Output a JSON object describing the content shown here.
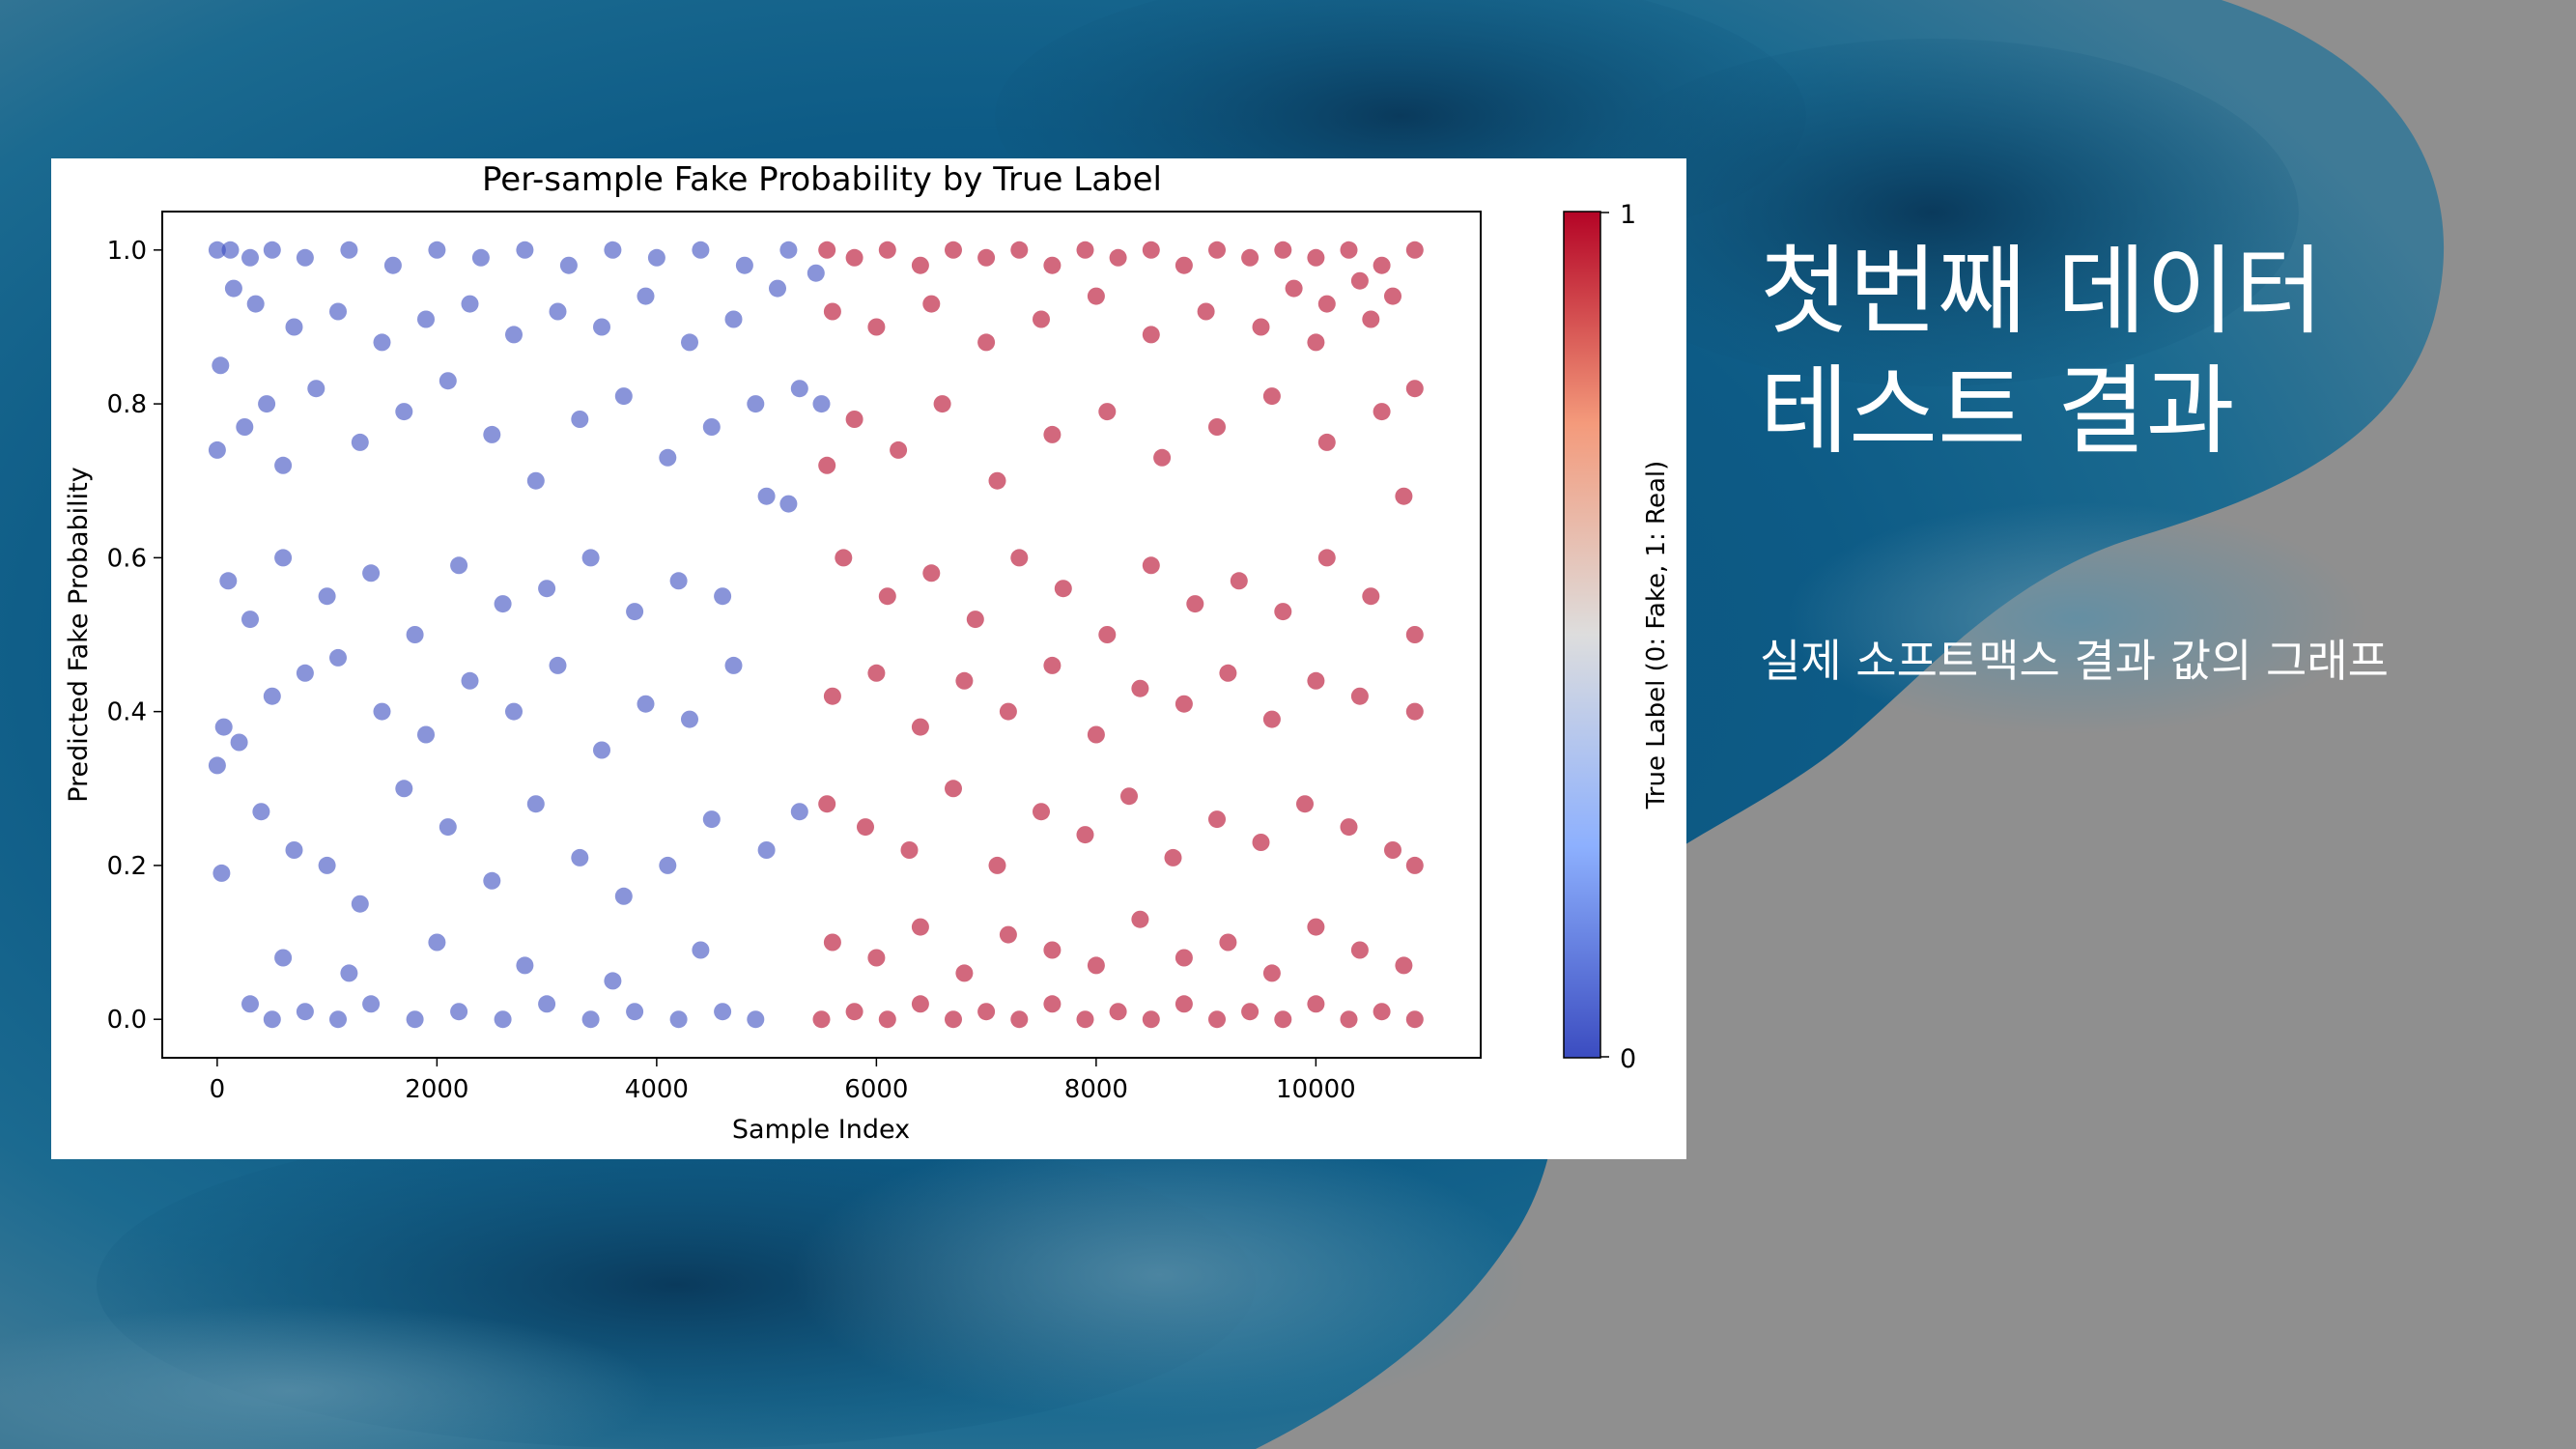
{
  "slide": {
    "title_line1": "첫번째 데이터",
    "title_line2": "테스트 결과",
    "subtitle": "실제 소프트맥스 결과 값의 그래프"
  },
  "colors": {
    "fake": "#3b4cc0",
    "real": "#b40426",
    "background_dark": "#0d4a6e",
    "background_gray": "#8f8f8f",
    "text": "#ffffff"
  },
  "chart_data": {
    "type": "scatter",
    "title": "Per-sample Fake Probability by True Label",
    "xlabel": "Sample Index",
    "ylabel": "Predicted Fake Probability",
    "xlim": [
      -500,
      11500
    ],
    "ylim": [
      -0.05,
      1.05
    ],
    "xticks": [
      0,
      2000,
      4000,
      6000,
      8000,
      10000
    ],
    "yticks": [
      0.0,
      0.2,
      0.4,
      0.6,
      0.8,
      1.0
    ],
    "xtick_labels": [
      "0",
      "2000",
      "4000",
      "6000",
      "8000",
      "10000"
    ],
    "ytick_labels": [
      "0.0",
      "0.2",
      "0.4",
      "0.6",
      "0.8",
      "1.0"
    ],
    "grid": false,
    "colorbar": {
      "label": "True Label (0: Fake, 1: Real)",
      "min_label": "0",
      "max_label": "1",
      "colormap": "coolwarm"
    },
    "series": [
      {
        "label_value": 0,
        "x_range": [
          0,
          5500
        ],
        "points": [
          [
            0,
            1.0
          ],
          [
            120,
            1.0
          ],
          [
            300,
            0.99
          ],
          [
            500,
            1.0
          ],
          [
            800,
            0.99
          ],
          [
            1200,
            1.0
          ],
          [
            1600,
            0.98
          ],
          [
            2000,
            1.0
          ],
          [
            2400,
            0.99
          ],
          [
            2800,
            1.0
          ],
          [
            3200,
            0.98
          ],
          [
            3600,
            1.0
          ],
          [
            4000,
            0.99
          ],
          [
            4400,
            1.0
          ],
          [
            4800,
            0.98
          ],
          [
            5200,
            1.0
          ],
          [
            5450,
            0.97
          ],
          [
            150,
            0.95
          ],
          [
            350,
            0.93
          ],
          [
            700,
            0.9
          ],
          [
            1100,
            0.92
          ],
          [
            1500,
            0.88
          ],
          [
            1900,
            0.91
          ],
          [
            2300,
            0.93
          ],
          [
            2700,
            0.89
          ],
          [
            3100,
            0.92
          ],
          [
            3500,
            0.9
          ],
          [
            3900,
            0.94
          ],
          [
            4300,
            0.88
          ],
          [
            4700,
            0.91
          ],
          [
            5100,
            0.95
          ],
          [
            0,
            0.74
          ],
          [
            30,
            0.85
          ],
          [
            250,
            0.77
          ],
          [
            450,
            0.8
          ],
          [
            600,
            0.72
          ],
          [
            900,
            0.82
          ],
          [
            1300,
            0.75
          ],
          [
            1700,
            0.79
          ],
          [
            2100,
            0.83
          ],
          [
            2500,
            0.76
          ],
          [
            2900,
            0.7
          ],
          [
            3300,
            0.78
          ],
          [
            3700,
            0.81
          ],
          [
            4100,
            0.73
          ],
          [
            4500,
            0.77
          ],
          [
            4900,
            0.8
          ],
          [
            5300,
            0.82
          ],
          [
            5500,
            0.8
          ],
          [
            100,
            0.57
          ],
          [
            300,
            0.52
          ],
          [
            600,
            0.6
          ],
          [
            1000,
            0.55
          ],
          [
            1400,
            0.58
          ],
          [
            1800,
            0.5
          ],
          [
            2200,
            0.59
          ],
          [
            2600,
            0.54
          ],
          [
            3000,
            0.56
          ],
          [
            3400,
            0.6
          ],
          [
            3800,
            0.53
          ],
          [
            4200,
            0.57
          ],
          [
            4600,
            0.55
          ],
          [
            5000,
            0.68
          ],
          [
            5200,
            0.67
          ],
          [
            60,
            0.38
          ],
          [
            200,
            0.36
          ],
          [
            500,
            0.42
          ],
          [
            800,
            0.45
          ],
          [
            1100,
            0.47
          ],
          [
            1500,
            0.4
          ],
          [
            1900,
            0.37
          ],
          [
            2300,
            0.44
          ],
          [
            2700,
            0.4
          ],
          [
            3100,
            0.46
          ],
          [
            3500,
            0.35
          ],
          [
            3900,
            0.41
          ],
          [
            4300,
            0.39
          ],
          [
            4700,
            0.46
          ],
          [
            5300,
            0.27
          ],
          [
            0,
            0.33
          ],
          [
            40,
            0.19
          ],
          [
            400,
            0.27
          ],
          [
            700,
            0.22
          ],
          [
            1000,
            0.2
          ],
          [
            1300,
            0.15
          ],
          [
            1700,
            0.3
          ],
          [
            2100,
            0.25
          ],
          [
            2500,
            0.18
          ],
          [
            2900,
            0.28
          ],
          [
            3300,
            0.21
          ],
          [
            3700,
            0.16
          ],
          [
            4100,
            0.2
          ],
          [
            4500,
            0.26
          ],
          [
            5000,
            0.22
          ],
          [
            300,
            0.02
          ],
          [
            500,
            0.0
          ],
          [
            800,
            0.01
          ],
          [
            1100,
            0.0
          ],
          [
            1400,
            0.02
          ],
          [
            1800,
            0.0
          ],
          [
            2200,
            0.01
          ],
          [
            2600,
            0.0
          ],
          [
            3000,
            0.02
          ],
          [
            3400,
            0.0
          ],
          [
            3800,
            0.01
          ],
          [
            4200,
            0.0
          ],
          [
            4600,
            0.01
          ],
          [
            4900,
            0.0
          ],
          [
            600,
            0.08
          ],
          [
            1200,
            0.06
          ],
          [
            2000,
            0.1
          ],
          [
            2800,
            0.07
          ],
          [
            3600,
            0.05
          ],
          [
            4400,
            0.09
          ]
        ]
      },
      {
        "label_value": 1,
        "x_range": [
          5500,
          11000
        ],
        "points": [
          [
            5550,
            1.0
          ],
          [
            5800,
            0.99
          ],
          [
            6100,
            1.0
          ],
          [
            6400,
            0.98
          ],
          [
            6700,
            1.0
          ],
          [
            7000,
            0.99
          ],
          [
            7300,
            1.0
          ],
          [
            7600,
            0.98
          ],
          [
            7900,
            1.0
          ],
          [
            8200,
            0.99
          ],
          [
            8500,
            1.0
          ],
          [
            8800,
            0.98
          ],
          [
            9100,
            1.0
          ],
          [
            9400,
            0.99
          ],
          [
            9700,
            1.0
          ],
          [
            10000,
            0.99
          ],
          [
            10300,
            1.0
          ],
          [
            10600,
            0.98
          ],
          [
            10900,
            1.0
          ],
          [
            9800,
            0.95
          ],
          [
            10100,
            0.93
          ],
          [
            10400,
            0.96
          ],
          [
            10700,
            0.94
          ],
          [
            5600,
            0.92
          ],
          [
            6000,
            0.9
          ],
          [
            6500,
            0.93
          ],
          [
            7000,
            0.88
          ],
          [
            7500,
            0.91
          ],
          [
            8000,
            0.94
          ],
          [
            8500,
            0.89
          ],
          [
            9000,
            0.92
          ],
          [
            9500,
            0.9
          ],
          [
            10000,
            0.88
          ],
          [
            10500,
            0.91
          ],
          [
            10900,
            0.82
          ],
          [
            5550,
            0.72
          ],
          [
            5800,
            0.78
          ],
          [
            6200,
            0.74
          ],
          [
            6600,
            0.8
          ],
          [
            7100,
            0.7
          ],
          [
            7600,
            0.76
          ],
          [
            8100,
            0.79
          ],
          [
            8600,
            0.73
          ],
          [
            9100,
            0.77
          ],
          [
            9600,
            0.81
          ],
          [
            10100,
            0.75
          ],
          [
            10600,
            0.79
          ],
          [
            10800,
            0.68
          ],
          [
            5700,
            0.6
          ],
          [
            6100,
            0.55
          ],
          [
            6500,
            0.58
          ],
          [
            6900,
            0.52
          ],
          [
            7300,
            0.6
          ],
          [
            7700,
            0.56
          ],
          [
            8100,
            0.5
          ],
          [
            8500,
            0.59
          ],
          [
            8900,
            0.54
          ],
          [
            9300,
            0.57
          ],
          [
            9700,
            0.53
          ],
          [
            10100,
            0.6
          ],
          [
            10500,
            0.55
          ],
          [
            10900,
            0.5
          ],
          [
            5600,
            0.42
          ],
          [
            6000,
            0.45
          ],
          [
            6400,
            0.38
          ],
          [
            6800,
            0.44
          ],
          [
            7200,
            0.4
          ],
          [
            7600,
            0.46
          ],
          [
            8000,
            0.37
          ],
          [
            8400,
            0.43
          ],
          [
            8800,
            0.41
          ],
          [
            9200,
            0.45
          ],
          [
            9600,
            0.39
          ],
          [
            10000,
            0.44
          ],
          [
            10400,
            0.42
          ],
          [
            10900,
            0.4
          ],
          [
            5550,
            0.28
          ],
          [
            5900,
            0.25
          ],
          [
            6300,
            0.22
          ],
          [
            6700,
            0.3
          ],
          [
            7100,
            0.2
          ],
          [
            7500,
            0.27
          ],
          [
            7900,
            0.24
          ],
          [
            8300,
            0.29
          ],
          [
            8700,
            0.21
          ],
          [
            9100,
            0.26
          ],
          [
            9500,
            0.23
          ],
          [
            9900,
            0.28
          ],
          [
            10300,
            0.25
          ],
          [
            10700,
            0.22
          ],
          [
            10900,
            0.2
          ],
          [
            5600,
            0.1
          ],
          [
            6000,
            0.08
          ],
          [
            6400,
            0.12
          ],
          [
            6800,
            0.06
          ],
          [
            7200,
            0.11
          ],
          [
            7600,
            0.09
          ],
          [
            8000,
            0.07
          ],
          [
            8400,
            0.13
          ],
          [
            8800,
            0.08
          ],
          [
            9200,
            0.1
          ],
          [
            9600,
            0.06
          ],
          [
            10000,
            0.12
          ],
          [
            10400,
            0.09
          ],
          [
            10800,
            0.07
          ],
          [
            5500,
            0.0
          ],
          [
            5800,
            0.01
          ],
          [
            6100,
            0.0
          ],
          [
            6400,
            0.02
          ],
          [
            6700,
            0.0
          ],
          [
            7000,
            0.01
          ],
          [
            7300,
            0.0
          ],
          [
            7600,
            0.02
          ],
          [
            7900,
            0.0
          ],
          [
            8200,
            0.01
          ],
          [
            8500,
            0.0
          ],
          [
            8800,
            0.02
          ],
          [
            9100,
            0.0
          ],
          [
            9400,
            0.01
          ],
          [
            9700,
            0.0
          ],
          [
            10000,
            0.02
          ],
          [
            10300,
            0.0
          ],
          [
            10600,
            0.01
          ],
          [
            10900,
            0.0
          ]
        ]
      }
    ]
  }
}
